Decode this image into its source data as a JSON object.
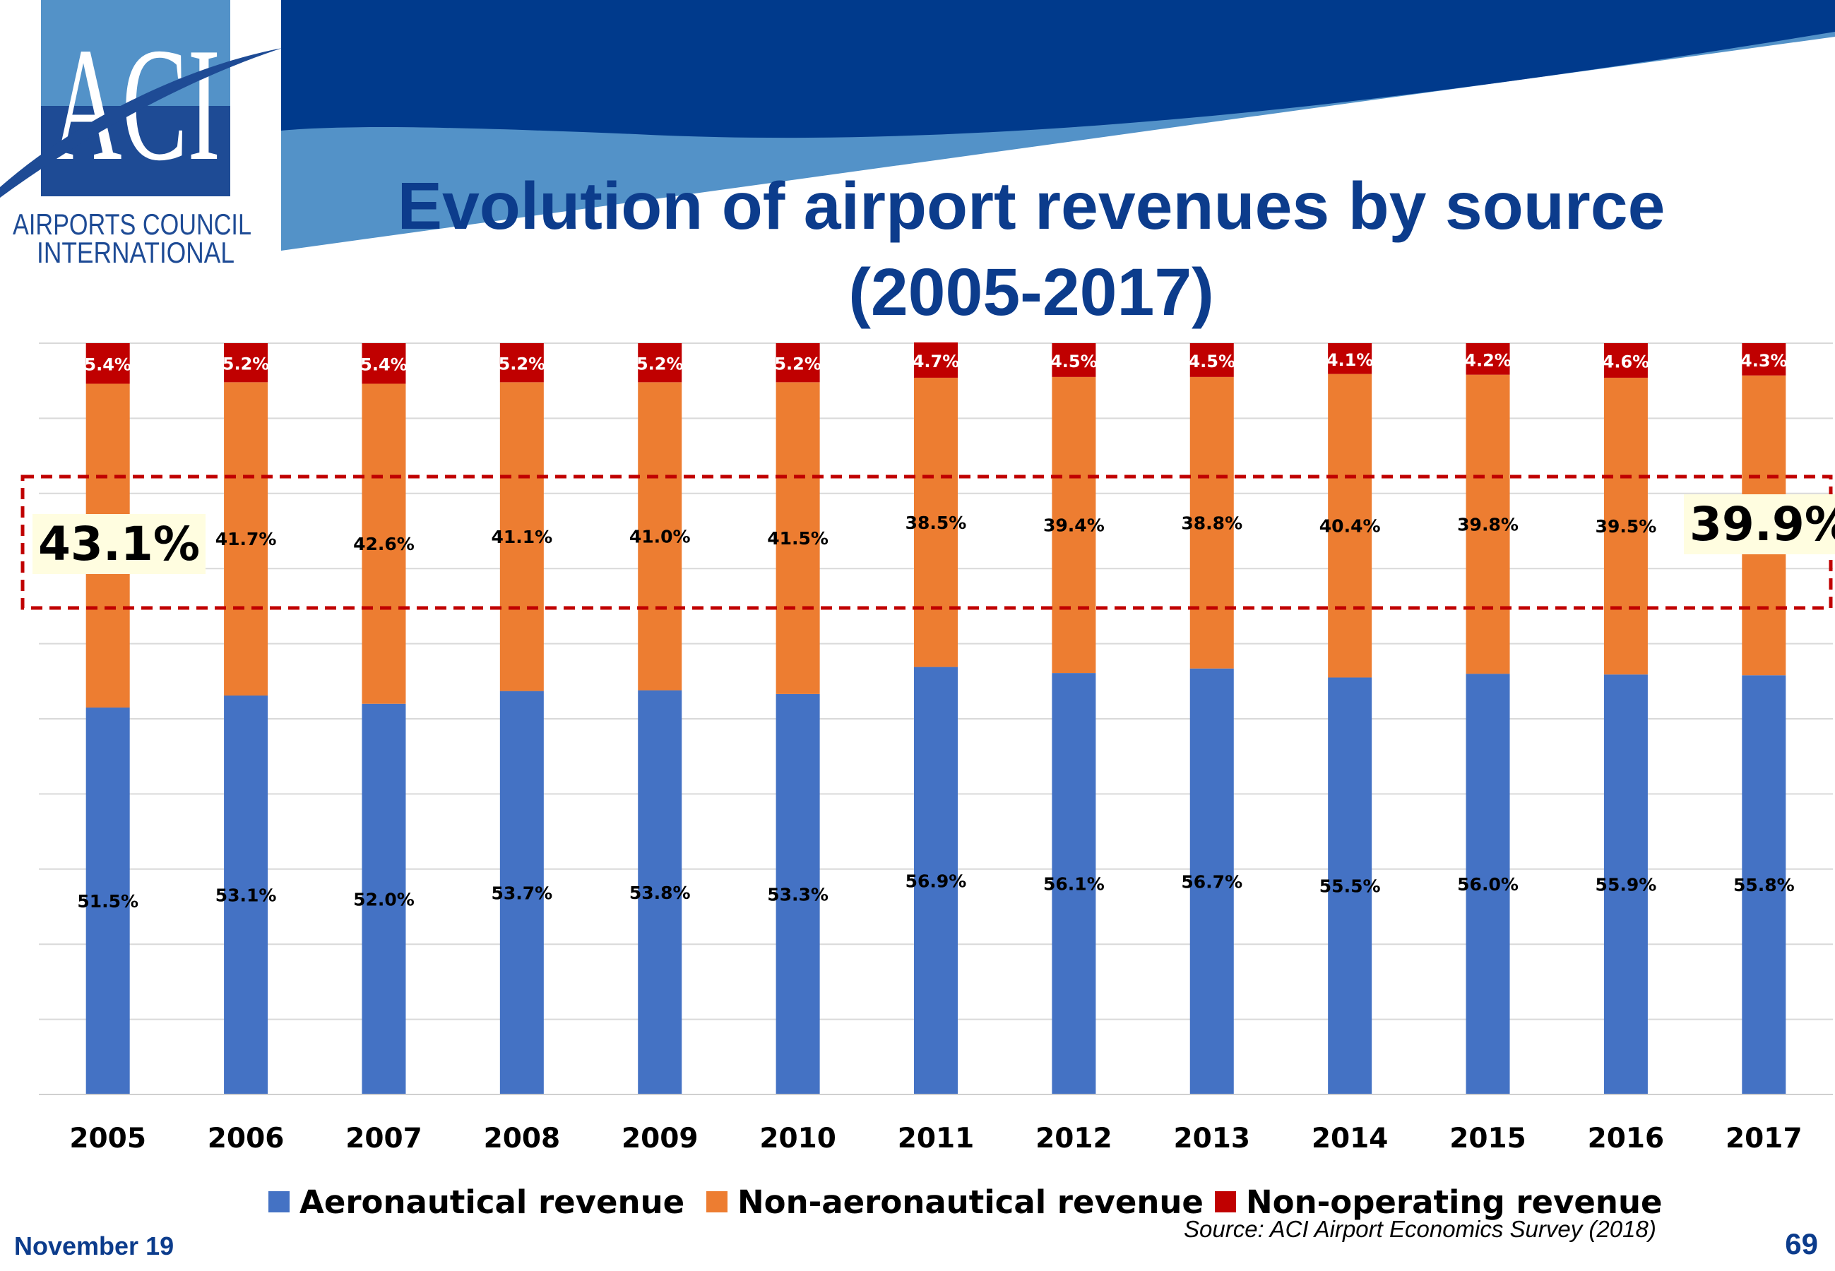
{
  "header": {
    "title_line1": "Evolution of airport revenues by source",
    "title_line2": "(2005-2017)",
    "logo_text": "ACI",
    "org_line1": "AIRPORTS COUNCIL",
    "org_line2": "INTERNATIONAL",
    "colors": {
      "dark_band": "#003a8c",
      "light_band": "#5392c8",
      "title": "#0c3c8c"
    }
  },
  "chart_data": {
    "type": "bar",
    "stacked": true,
    "categories": [
      "2005",
      "2006",
      "2007",
      "2008",
      "2009",
      "2010",
      "2011",
      "2012",
      "2013",
      "2014",
      "2015",
      "2016",
      "2017"
    ],
    "series": [
      {
        "name": "Aeronautical revenue",
        "color": "#4472c4",
        "values": [
          51.5,
          53.1,
          52.0,
          53.7,
          53.8,
          53.3,
          56.9,
          56.1,
          56.7,
          55.5,
          56.0,
          55.9,
          55.8
        ],
        "labels": [
          "51.5%",
          "53.1%",
          "52.0%",
          "53.7%",
          "53.8%",
          "53.3%",
          "56.9%",
          "56.1%",
          "56.7%",
          "55.5%",
          "56.0%",
          "55.9%",
          "55.8%"
        ]
      },
      {
        "name": "Non-aeronautical revenue",
        "color": "#ed7d31",
        "values": [
          43.1,
          41.7,
          42.6,
          41.1,
          41.0,
          41.5,
          38.5,
          39.4,
          38.8,
          40.4,
          39.8,
          39.5,
          39.9
        ],
        "labels": [
          "43.1%",
          "41.7%",
          "42.6%",
          "41.1%",
          "41.0%",
          "41.5%",
          "38.5%",
          "39.4%",
          "38.8%",
          "40.4%",
          "39.8%",
          "39.5%",
          "39.9%"
        ]
      },
      {
        "name": "Non-operating revenue",
        "color": "#c00000",
        "values": [
          5.4,
          5.2,
          5.4,
          5.2,
          5.2,
          5.2,
          4.7,
          4.5,
          4.5,
          4.1,
          4.2,
          4.6,
          4.3
        ],
        "labels": [
          "5.4%",
          "5.2%",
          "5.4%",
          "5.2%",
          "5.2%",
          "5.2%",
          "4.7%",
          "4.5%",
          "4.5%",
          "4.1%",
          "4.2%",
          "4.6%",
          "4.3%"
        ]
      }
    ],
    "ylim": [
      0,
      100
    ],
    "grid": true,
    "legend_position": "bottom",
    "highlight": {
      "series": "Non-aeronautical revenue",
      "callouts": [
        "43.1%",
        "39.9%"
      ],
      "border_color": "#c00000"
    }
  },
  "footer": {
    "date": "November 19",
    "source": "Source: ACI Airport Economics Survey (2018)",
    "page_number": "69"
  }
}
